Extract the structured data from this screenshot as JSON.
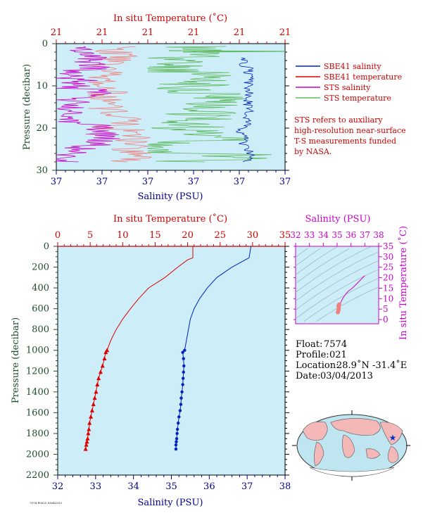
{
  "colors": {
    "plot_bg": "#cdeef8",
    "salinity": "#0022bb",
    "temperature": "#dd0000",
    "sts_salinity": "#cc00cc",
    "sts_temperature": "#5fba5f",
    "sbe_temp_light": "#f08080",
    "axis_red": "#cc0000",
    "axis_blue": "#00008b",
    "axis_green": "#1e4d2b",
    "axis_magenta": "#cc00cc"
  },
  "top_panel": {
    "top_axis_title": "In situ Temperature (˚C)",
    "bottom_axis_title": "Salinity (PSU)",
    "left_axis_title": "Pressure (decibar)",
    "top_ticks": [
      "21",
      "21",
      "21",
      "21",
      "21",
      "21"
    ],
    "bottom_ticks": [
      "37",
      "37",
      "37",
      "37",
      "37",
      "37"
    ],
    "left_ticks": [
      "0",
      "10",
      "20",
      "30"
    ],
    "legend": [
      {
        "label": "SBE41 salinity",
        "color": "#0022bb"
      },
      {
        "label": "SBE41 temperature",
        "color": "#dd0000"
      },
      {
        "label": "STS salinity",
        "color": "#cc00cc"
      },
      {
        "label": "STS temperature",
        "color": "#5fba5f"
      }
    ],
    "note_lines": [
      "STS refers to auxiliary",
      "high-resolution near-surface",
      "T-S measurements funded",
      "by NASA."
    ]
  },
  "main_panel": {
    "top_axis_title": "In situ Temperature (˚C)",
    "bottom_axis_title": "Salinity (PSU)",
    "left_axis_title": "Pressure (decibar)",
    "top_ticks": [
      "0",
      "5",
      "10",
      "15",
      "20",
      "25",
      "30",
      "35"
    ],
    "bottom_ticks": [
      "32",
      "33",
      "34",
      "35",
      "36",
      "37",
      "38"
    ],
    "left_ticks": [
      "0",
      "200",
      "400",
      "600",
      "800",
      "1000",
      "1200",
      "1400",
      "1600",
      "1800",
      "2000",
      "2200"
    ]
  },
  "ts_panel": {
    "top_axis_title": "Salinity (PSU)",
    "right_axis_title": "In situ Temperature (˚C)",
    "top_ticks": [
      "32",
      "33",
      "34",
      "35",
      "36",
      "37",
      "38"
    ],
    "right_ticks": [
      "0",
      "5",
      "10",
      "15",
      "20",
      "25",
      "30",
      "35"
    ]
  },
  "info": {
    "float_label": "Float:",
    "float_value": "7574",
    "profile_label": "Profile:",
    "profile_value": "021",
    "location_label": "Location:",
    "location_value": "28.9˚N  -31.4˚E",
    "date_label": "Date:",
    "date_value": "03/04/2013"
  },
  "footer_small_text": "7574 P0021 03042013",
  "chart_data": [
    {
      "type": "line",
      "xlabel": "Salinity (PSU)",
      "x2label": "In situ Temperature (˚C)",
      "ylabel": "Pressure (decibar)",
      "ylim": [
        30,
        0
      ],
      "series": [
        {
          "name": "SBE41 salinity",
          "x": [
            37.0,
            37.0,
            37.0
          ],
          "y": [
            4,
            16,
            28
          ]
        },
        {
          "name": "SBE41 temperature",
          "x": [
            21.0,
            21.0,
            21.0
          ],
          "y": [
            4,
            16,
            28
          ]
        },
        {
          "name": "STS salinity",
          "x": [
            37.0,
            37.0,
            37.0
          ],
          "y": [
            1,
            14,
            28
          ]
        },
        {
          "name": "STS temperature",
          "x": [
            21.0,
            21.0,
            21.0
          ],
          "y": [
            1,
            14,
            28
          ]
        }
      ]
    },
    {
      "type": "line",
      "xlabel": "Salinity (PSU)",
      "x2label": "In situ Temperature (˚C)",
      "ylabel": "Pressure (decibar)",
      "xlim": [
        32,
        38
      ],
      "x2lim": [
        0,
        35
      ],
      "ylim": [
        2200,
        0
      ],
      "series": [
        {
          "name": "Salinity",
          "axis": "bottom",
          "x": [
            37.1,
            37.05,
            36.95,
            36.6,
            36.2,
            35.95,
            35.75,
            35.6,
            35.5,
            35.45,
            35.4,
            35.35,
            35.3,
            35.32,
            35.33,
            35.32,
            35.31,
            35.3,
            35.28,
            35.26,
            35.25,
            35.23,
            35.2,
            35.18,
            35.16,
            35.15,
            35.14,
            35.13,
            35.12,
            35.12
          ],
          "y": [
            0,
            110,
            130,
            200,
            300,
            400,
            500,
            600,
            700,
            800,
            900,
            1000,
            1020,
            1080,
            1150,
            1210,
            1270,
            1330,
            1400,
            1460,
            1520,
            1580,
            1640,
            1700,
            1760,
            1800,
            1850,
            1880,
            1910,
            1950
          ]
        },
        {
          "name": "Temperature",
          "axis": "top",
          "x": [
            20.8,
            20.8,
            20.0,
            18.5,
            16.5,
            14.0,
            12.5,
            11.2,
            10.0,
            9.0,
            8.2,
            7.6,
            7.4,
            7.2,
            6.9,
            6.6,
            6.3,
            6.1,
            5.9,
            5.7,
            5.5,
            5.3,
            5.1,
            4.9,
            4.8,
            4.7,
            4.6,
            4.5,
            4.4,
            4.3
          ],
          "y": [
            0,
            110,
            130,
            200,
            300,
            400,
            500,
            600,
            700,
            800,
            900,
            1000,
            1020,
            1080,
            1150,
            1210,
            1270,
            1330,
            1400,
            1460,
            1520,
            1580,
            1640,
            1700,
            1760,
            1800,
            1850,
            1880,
            1910,
            1950
          ]
        }
      ]
    },
    {
      "type": "line",
      "xlabel": "Salinity (PSU)",
      "ylabel": "In situ Temperature (˚C)",
      "xlim": [
        32,
        38
      ],
      "ylim": [
        -2,
        35
      ],
      "series": [
        {
          "name": "T-S",
          "x": [
            35.1,
            35.15,
            35.25,
            35.4,
            35.6,
            35.8,
            36.1,
            36.4,
            36.7,
            37.0
          ],
          "y": [
            4,
            6,
            8,
            10,
            12,
            13.5,
            15,
            17,
            19,
            21
          ]
        }
      ]
    }
  ]
}
